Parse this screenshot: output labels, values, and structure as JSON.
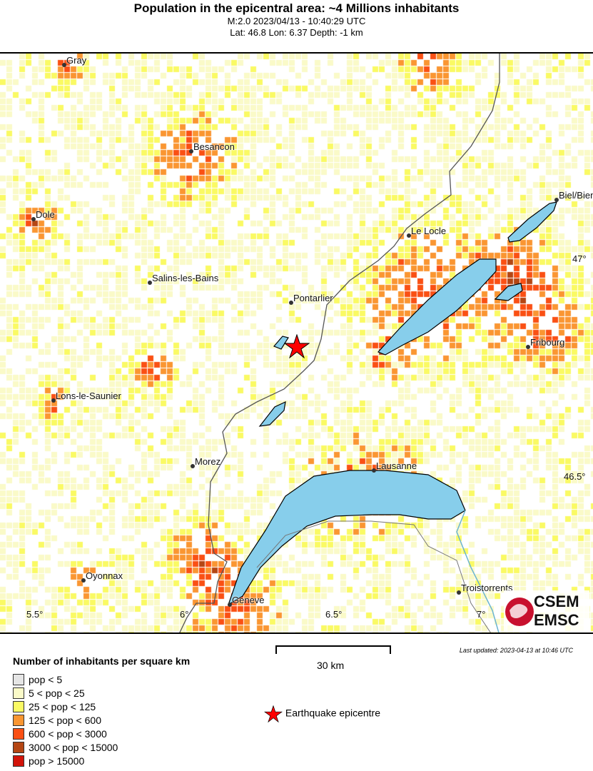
{
  "header": {
    "title": "Population in the epicentral area: ~4 Millions inhabitants",
    "line1": "M:2.0 2023/04/13 - 10:40:29 UTC",
    "line2": "Lat: 46.8 Lon: 6.37 Depth: -1 km"
  },
  "map": {
    "cities": [
      "Gray",
      "Besancon",
      "Dole",
      "Salins-les-Bains",
      "Pontarlier",
      "Le Locle",
      "Biel/Bienne",
      "Fribourg",
      "Lons-le-Saunier",
      "Morez",
      "Lausanne",
      "Oyonnax",
      "Geneve",
      "Troistorrents"
    ],
    "lon_ticks": [
      "5.5°",
      "6°",
      "6.5°",
      "7°"
    ],
    "lat_ticks": [
      "47°",
      "46.5°"
    ],
    "epicenter": {
      "lat": 46.8,
      "lon": 6.37,
      "icon": "red-star-icon"
    },
    "colors": {
      "land": "#ffffff",
      "lake": "#87ceeb",
      "border": "#555555",
      "epicenter": "#ff0000"
    }
  },
  "legend": {
    "title": "Number of inhabitants per square km",
    "classes": [
      {
        "label": "pop < 5",
        "color": "#e5e5e5"
      },
      {
        "label": "5 < pop < 25",
        "color": "#fafac8"
      },
      {
        "label": "25 < pop < 125",
        "color": "#fafa64"
      },
      {
        "label": "125 < pop < 600",
        "color": "#fa9632"
      },
      {
        "label": "600 < pop < 3000",
        "color": "#fa5014"
      },
      {
        "label": "3000 < pop < 15000",
        "color": "#b44614"
      },
      {
        "label": "pop > 15000",
        "color": "#d2140a"
      }
    ],
    "epicentre_label": "Earthquake epicentre"
  },
  "scale": {
    "label": "30 km"
  },
  "updated": "Last updated: 2023-04-13 at 10:46 UTC",
  "logo": {
    "line1": "CSEM",
    "line2": "EMSC"
  }
}
